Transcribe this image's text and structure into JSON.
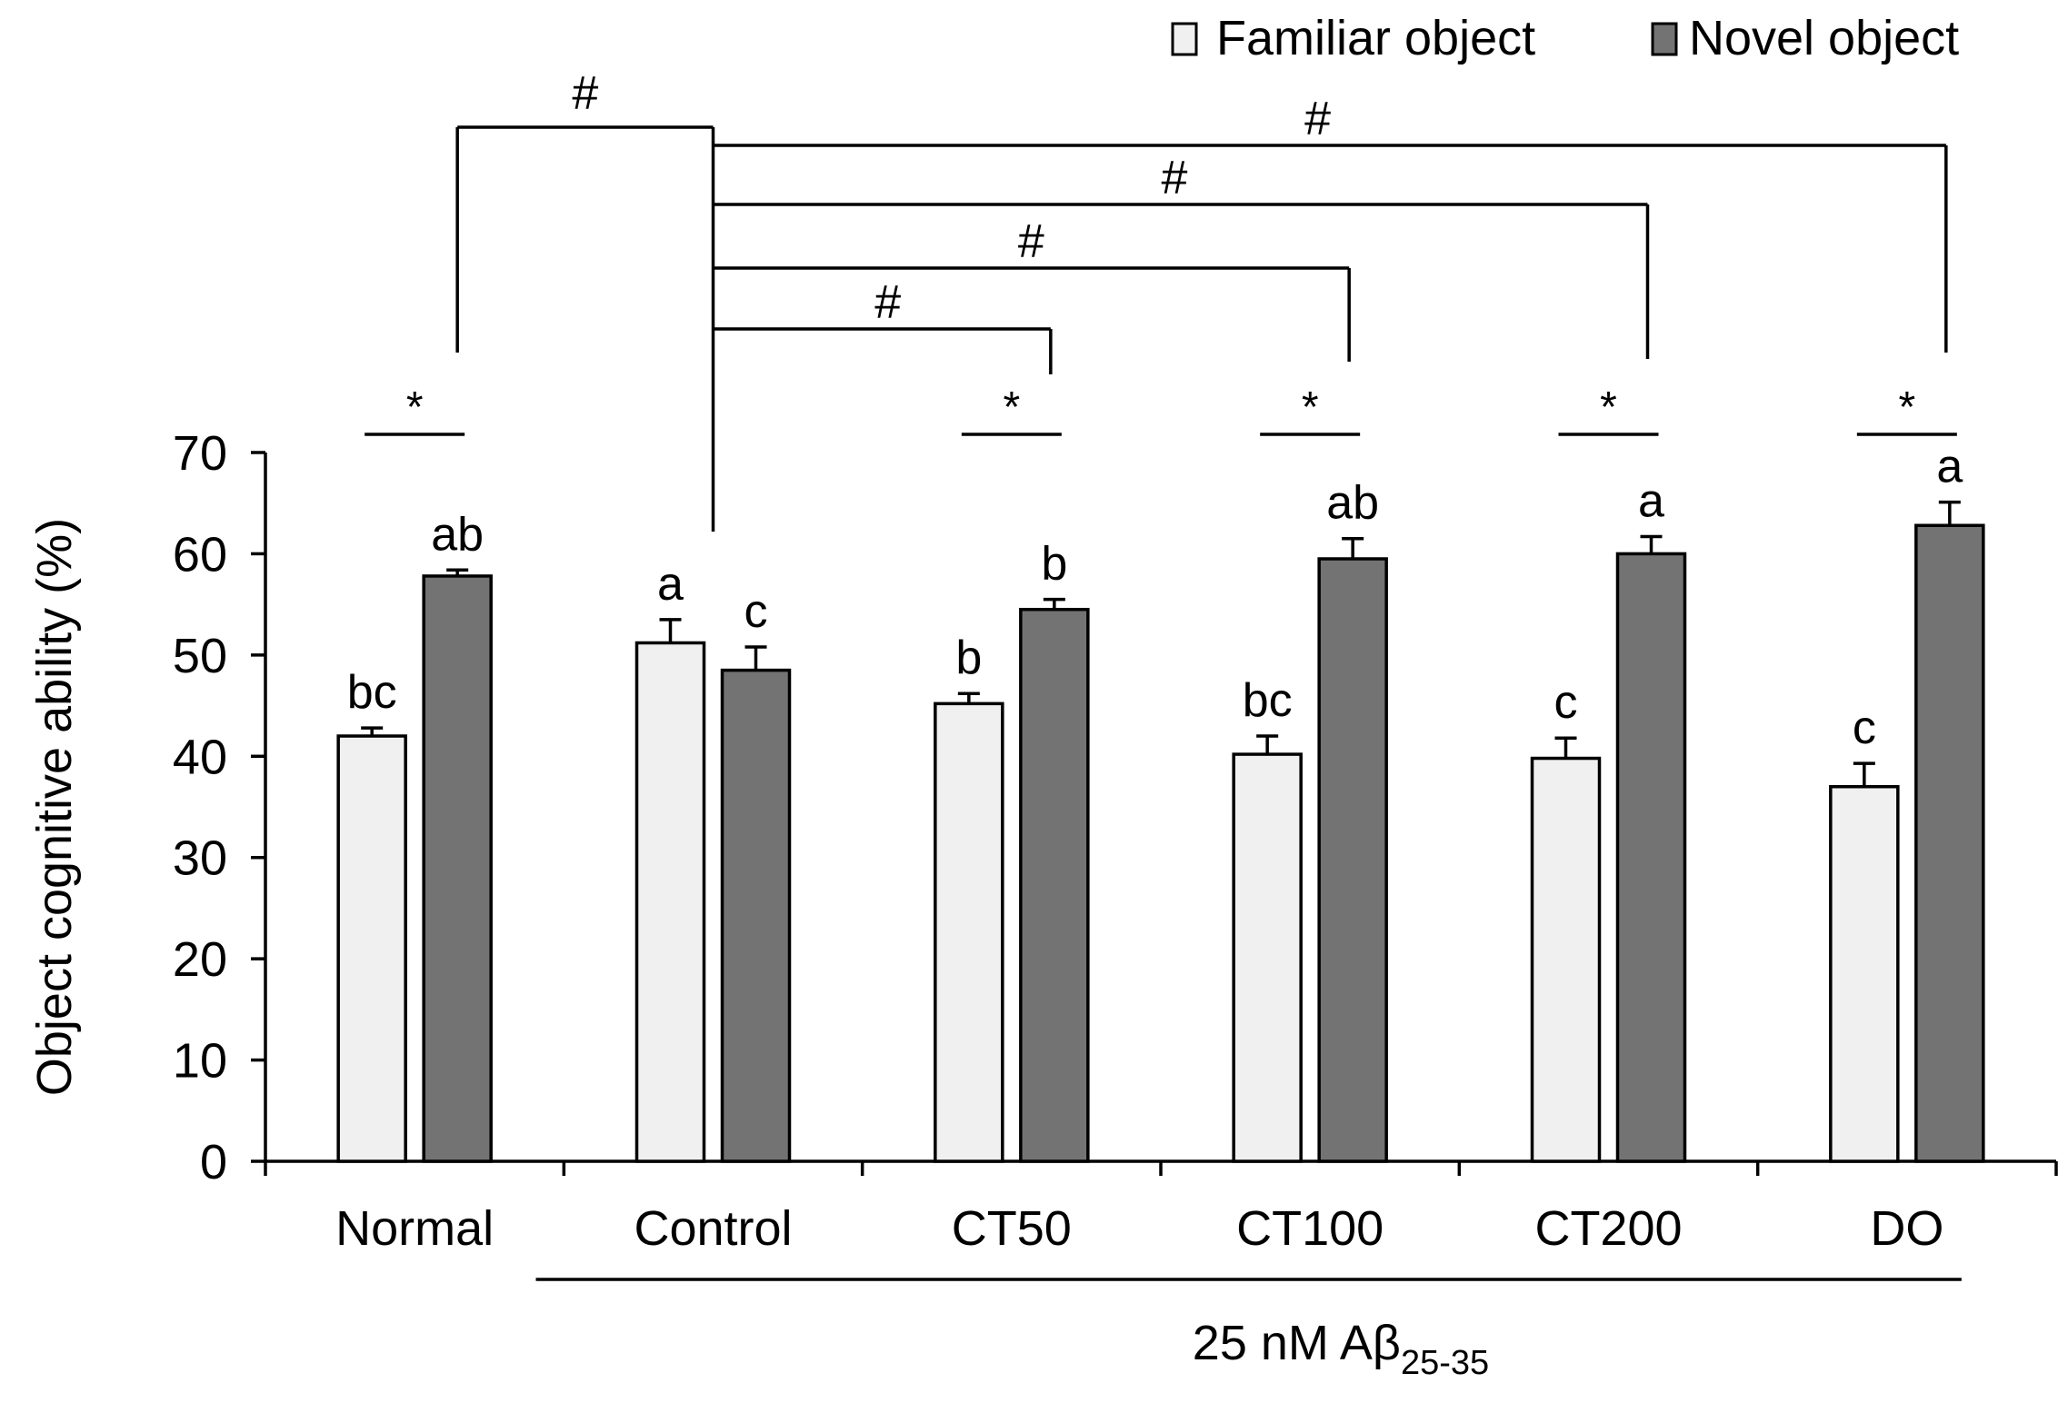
{
  "chart_data": {
    "type": "bar",
    "title": "",
    "xlabel": "",
    "ylabel": "Object cognitive ability (%)",
    "ylim": [
      0,
      70
    ],
    "yticks": [
      0,
      10,
      20,
      30,
      40,
      50,
      60,
      70
    ],
    "grid": false,
    "legend_position": "top-right",
    "categories": [
      "Normal",
      "Control",
      "CT50",
      "CT100",
      "CT200",
      "DO"
    ],
    "series": [
      {
        "name": "Familiar object",
        "color": "#f0f0f0",
        "values": [
          42.0,
          51.2,
          45.2,
          40.2,
          39.8,
          37.0
        ],
        "errors": [
          0.8,
          2.3,
          1.0,
          1.8,
          2.0,
          2.3
        ],
        "letters": [
          "bc",
          "a",
          "b",
          "bc",
          "c",
          "c"
        ]
      },
      {
        "name": "Novel object",
        "color": "#737373",
        "values": [
          57.8,
          48.5,
          54.5,
          59.5,
          60.0,
          62.8
        ],
        "errors": [
          0.6,
          2.3,
          1.0,
          2.0,
          1.7,
          2.3
        ],
        "letters": [
          "ab",
          "c",
          "b",
          "ab",
          "a",
          "a"
        ]
      }
    ],
    "within_group_significance": {
      "symbol": "*",
      "groups": [
        "Normal",
        "CT50",
        "CT100",
        "CT200",
        "DO"
      ]
    },
    "vs_control_significance": {
      "symbol": "#",
      "reference": "Control",
      "groups": [
        "Normal",
        "CT50",
        "CT100",
        "CT200",
        "DO"
      ]
    },
    "treatment_bracket": {
      "label_main": "25 nM Aβ",
      "label_subscript": "25-35",
      "groups": [
        "Control",
        "CT50",
        "CT100",
        "CT200",
        "DO"
      ]
    }
  }
}
